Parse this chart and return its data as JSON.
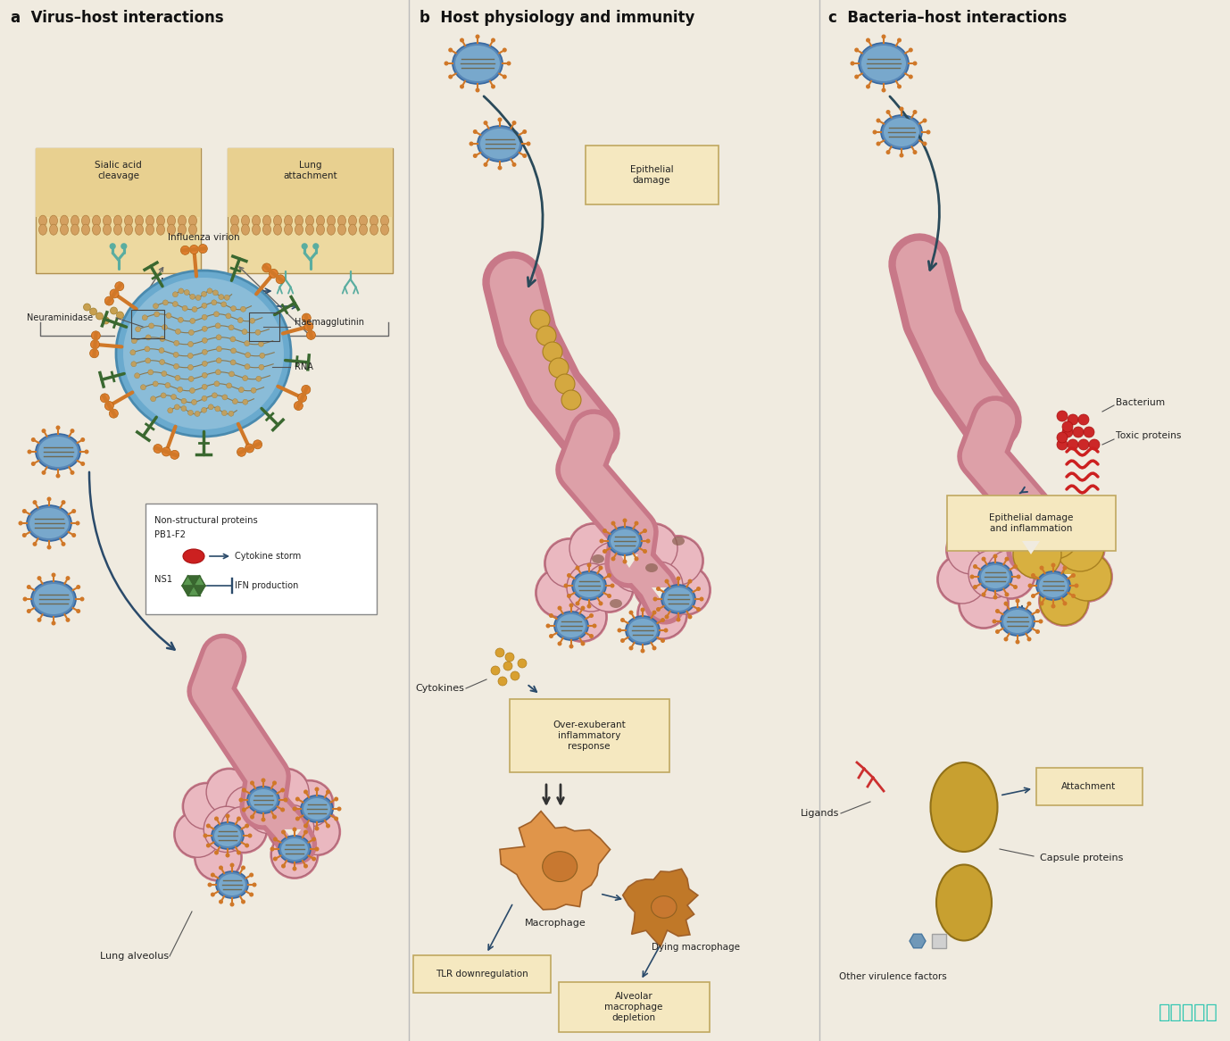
{
  "background_color": "#F0EBE0",
  "title_a": "a  Virus–host interactions",
  "title_b": "b  Host physiology and immunity",
  "title_c": "c  Bacteria–host interactions",
  "title_color": "#111111",
  "title_fontsize": 12,
  "watermark": "热爱收录库",
  "watermark_color": "#2DC5B0",
  "watermark_fontsize": 16,
  "divider_color": "#BBBBBB",
  "box_fill": "#F5E8C0",
  "box_edge": "#C0A860",
  "label_fs": 8,
  "small_fs": 7.5,
  "virion_blue": "#5E9EC8",
  "virion_inner": "#4A7EA8",
  "spike_orange": "#D98030",
  "spike_green": "#4A7840",
  "rna_tan": "#C8A860",
  "membrane_tan": "#D4A870",
  "membrane_dots": "#C89050",
  "receptor_teal": "#5AADA0",
  "lung_outer": "#C87888",
  "lung_inner": "#DDA0A8",
  "alv_outer": "#C87888",
  "alv_inner": "#E0A8B0",
  "alv_fill": "#EAB8C0",
  "alv_dark": "#B06878",
  "gold_fill": "#D4A840",
  "gold_edge": "#A88020",
  "macrophage_orange": "#E0954A",
  "macrophage_nucleus": "#C87830",
  "macrophage_dark": "#B06820",
  "virus_blue": "#5890C0",
  "virus_edge": "#3870A0",
  "virus_spike": "#8080A0",
  "bacteria_red": "#CC2828",
  "bacteria_edge": "#AA1818",
  "bact_gold": "#C8A030",
  "bact_gold_edge": "#907018",
  "arrow_dark": "#2A4A6A",
  "line_dark": "#333333",
  "ns_box_fill": "#FFFFFF",
  "ns_box_edge": "#888888"
}
